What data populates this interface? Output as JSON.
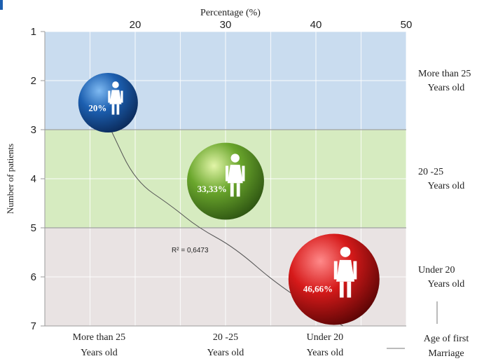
{
  "chart_data": {
    "type": "scatter",
    "title": "",
    "x_axis": {
      "label": "Percentage (%)",
      "position": "top",
      "range": [
        10,
        50
      ],
      "ticks": [
        "20",
        "30",
        "40",
        "50"
      ],
      "tick_values": [
        20,
        30,
        40,
        50
      ]
    },
    "y_axis": {
      "label": "Number of patients",
      "range": [
        1,
        7
      ],
      "inverted": true,
      "ticks": [
        "1",
        "2",
        "3",
        "4",
        "5",
        "6",
        "7"
      ],
      "tick_values": [
        1,
        2,
        3,
        4,
        5,
        6,
        7
      ]
    },
    "bands": [
      {
        "from": 1,
        "to": 3,
        "color": "#c9dcef",
        "label_line1": "More than 25",
        "label_line2": "Years old"
      },
      {
        "from": 3,
        "to": 5,
        "color": "#d6ebc0",
        "label_line1": "20 -25",
        "label_line2": "Years old"
      },
      {
        "from": 5,
        "to": 7,
        "color": "#e9e3e3",
        "label_line1": "Under 20",
        "label_line2": "Years old"
      }
    ],
    "bottom_categories": [
      {
        "line1": "More than 25",
        "line2": "Years old",
        "x": 16
      },
      {
        "line1": "20 -25",
        "line2": "Years old",
        "x": 30
      },
      {
        "line1": "Under 20",
        "line2": "Years old",
        "x": 41
      }
    ],
    "bottom_axis_title": {
      "line1": "Age of first",
      "line2": "Marriage"
    },
    "points": [
      {
        "label": "20%",
        "x": 17,
        "y": 2.45,
        "size": 20,
        "color": "#1c5fb0",
        "icon": "woman-icon"
      },
      {
        "label": "33,33%",
        "x": 30,
        "y": 4.05,
        "size": 33.33,
        "color": "#6aa62c",
        "icon": "woman-icon"
      },
      {
        "label": "46,66%",
        "x": 42,
        "y": 6.05,
        "size": 46.66,
        "color": "#d61a1a",
        "icon": "woman-icon"
      }
    ],
    "trendline": {
      "label": "R² = 0,6473",
      "r_squared": 0.6473,
      "points": [
        [
          17.3,
          3.0
        ],
        [
          20,
          4.05
        ],
        [
          24,
          4.55
        ],
        [
          27,
          5.0
        ],
        [
          31,
          5.4
        ],
        [
          36,
          6.2
        ],
        [
          43,
          7.0
        ]
      ]
    },
    "grid": true,
    "legend": "none"
  }
}
